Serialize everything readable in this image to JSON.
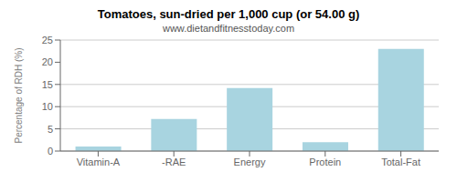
{
  "chart_data": {
    "type": "bar",
    "title": "Tomatoes, sun-dried per 1,000 cup (or 54.00 g)",
    "subtitle": "www.dietandfitnesstoday.com",
    "categories": [
      "Vitamin-A",
      "-RAE",
      "Energy",
      "Protein",
      "Total-Fat"
    ],
    "values": [
      1.0,
      7.2,
      14.2,
      2.0,
      23.0
    ],
    "color": "#a8d4e0",
    "ylabel": "Percentage of RDH (%)",
    "ylim": [
      0,
      25
    ],
    "yticks": [
      0,
      5,
      10,
      15,
      20,
      25
    ],
    "grid": true
  }
}
